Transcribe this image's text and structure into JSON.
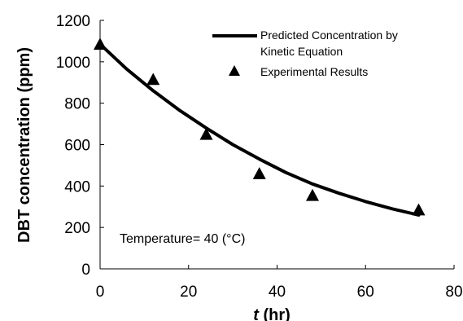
{
  "chart_data": {
    "type": "line",
    "title": "",
    "xlabel_italic": "t",
    "xlabel_rest": " (hr)",
    "ylabel": "DBT concentration (ppm)",
    "xlim": [
      0,
      80
    ],
    "ylim": [
      0,
      1200
    ],
    "xticks": [
      0,
      20,
      40,
      60,
      80
    ],
    "yticks": [
      0,
      200,
      400,
      600,
      800,
      1000,
      1200
    ],
    "grid": false,
    "legend_position": "top-right",
    "series": [
      {
        "name": "Predicted Concentration by Kinetic Equation",
        "legend_lines": [
          "Predicted Concentration by",
          "Kinetic Equation"
        ],
        "kind": "line",
        "color": "#000000",
        "x": [
          0,
          6,
          12,
          18,
          24,
          30,
          36,
          42,
          48,
          54,
          60,
          66,
          72
        ],
        "y": [
          1085,
          965,
          860,
          765,
          680,
          600,
          530,
          465,
          410,
          365,
          325,
          290,
          260
        ]
      },
      {
        "name": "Experimental Results",
        "kind": "scatter",
        "marker": "triangle",
        "color": "#000000",
        "x": [
          0,
          12,
          24,
          36,
          48,
          72
        ],
        "y": [
          1085,
          915,
          650,
          460,
          355,
          285
        ]
      }
    ],
    "annotation": "Temperature= 40 (°C)"
  }
}
